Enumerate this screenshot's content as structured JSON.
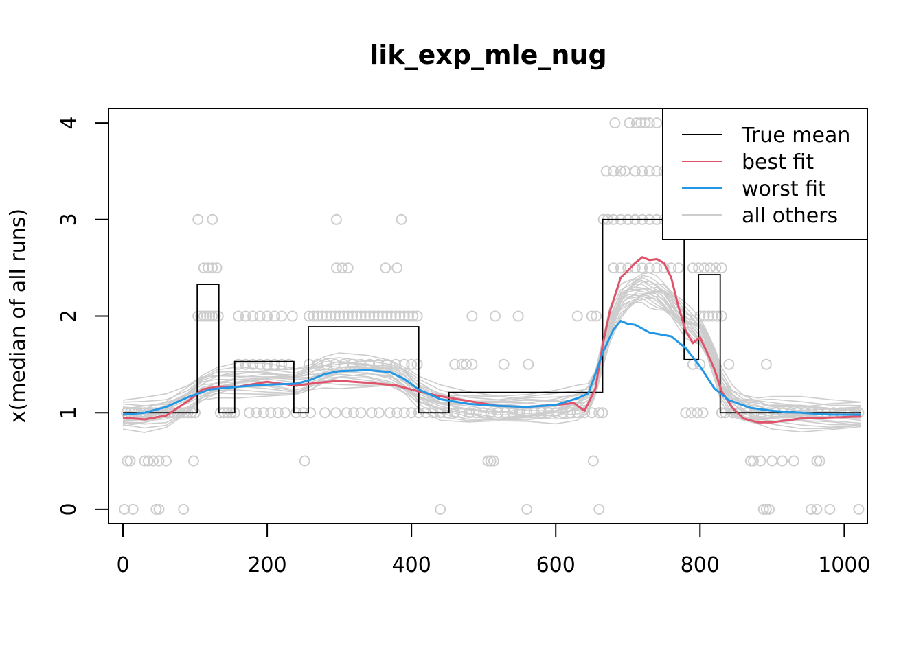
{
  "chart_data": {
    "type": "line",
    "title": "lik_exp_mle_nug",
    "xlabel": "",
    "ylabel": "x(median of all runs)",
    "xlim": [
      -20,
      1032
    ],
    "ylim": [
      -0.15,
      4.15
    ],
    "x_ticks": [
      0,
      200,
      400,
      600,
      800,
      1000
    ],
    "y_ticks": [
      0,
      1,
      2,
      3,
      4
    ],
    "x_tick_labels": [
      "0",
      "200",
      "400",
      "600",
      "800",
      "1000"
    ],
    "y_tick_labels": [
      "0",
      "1",
      "2",
      "3",
      "4"
    ],
    "grid": false,
    "legend_position": "top-right",
    "legend": [
      {
        "label": "True mean",
        "color": "#000000"
      },
      {
        "label": "best fit",
        "color": "#DF536B"
      },
      {
        "label": "worst fit",
        "color": "#2297E6"
      },
      {
        "label": "all others",
        "color": "#CDCDCD"
      }
    ],
    "true_mean": {
      "x": [
        0,
        103,
        103,
        133,
        133,
        155,
        155,
        237,
        237,
        257,
        257,
        410,
        410,
        452,
        452,
        665,
        665,
        778,
        778,
        798,
        798,
        828,
        828,
        1023
      ],
      "y": [
        1.0,
        1.0,
        2.33,
        2.33,
        1.0,
        1.0,
        1.53,
        1.53,
        1.0,
        1.0,
        1.89,
        1.89,
        1.0,
        1.0,
        1.21,
        1.21,
        3.0,
        3.0,
        1.55,
        1.55,
        2.43,
        2.43,
        1.0,
        1.0
      ]
    },
    "series": [
      {
        "name": "best fit",
        "color": "#DF536B",
        "x": [
          0,
          30,
          60,
          90,
          110,
          130,
          160,
          200,
          240,
          270,
          300,
          340,
          380,
          410,
          440,
          480,
          520,
          560,
          600,
          625,
          640,
          655,
          665,
          675,
          690,
          700,
          710,
          720,
          730,
          740,
          750,
          760,
          770,
          780,
          790,
          800,
          810,
          820,
          830,
          845,
          860,
          880,
          900,
          940,
          980,
          1023
        ],
        "y": [
          0.95,
          0.93,
          0.97,
          1.12,
          1.24,
          1.27,
          1.27,
          1.32,
          1.28,
          1.31,
          1.33,
          1.31,
          1.28,
          1.22,
          1.17,
          1.12,
          1.07,
          1.06,
          1.08,
          1.1,
          1.02,
          1.25,
          1.7,
          2.05,
          2.4,
          2.47,
          2.55,
          2.61,
          2.58,
          2.59,
          2.55,
          2.4,
          2.1,
          1.85,
          1.72,
          1.78,
          1.62,
          1.45,
          1.22,
          1.05,
          0.94,
          0.9,
          0.9,
          0.94,
          0.95,
          0.96
        ]
      },
      {
        "name": "worst fit",
        "color": "#2297E6",
        "x": [
          0,
          30,
          60,
          90,
          120,
          160,
          200,
          240,
          260,
          280,
          300,
          340,
          370,
          390,
          410,
          440,
          480,
          520,
          560,
          600,
          630,
          645,
          655,
          665,
          680,
          690,
          700,
          710,
          730,
          760,
          780,
          800,
          820,
          840,
          870,
          900,
          940,
          980,
          1023
        ],
        "y": [
          0.98,
          1.0,
          1.06,
          1.16,
          1.24,
          1.27,
          1.29,
          1.3,
          1.34,
          1.4,
          1.43,
          1.44,
          1.42,
          1.35,
          1.24,
          1.14,
          1.09,
          1.07,
          1.06,
          1.08,
          1.15,
          1.2,
          1.4,
          1.62,
          1.86,
          1.95,
          1.92,
          1.91,
          1.83,
          1.79,
          1.67,
          1.48,
          1.25,
          1.13,
          1.05,
          1.02,
          1.0,
          0.98,
          0.98
        ]
      }
    ],
    "others_base": {
      "x": [
        0,
        30,
        60,
        90,
        110,
        130,
        160,
        200,
        240,
        260,
        280,
        300,
        340,
        370,
        390,
        410,
        440,
        480,
        520,
        560,
        600,
        630,
        645,
        655,
        665,
        675,
        690,
        700,
        710,
        720,
        730,
        740,
        750,
        760,
        770,
        780,
        790,
        800,
        810,
        820,
        830,
        845,
        860,
        880,
        900,
        940,
        980,
        1023
      ],
      "y": [
        0.97,
        0.97,
        1.02,
        1.14,
        1.25,
        1.3,
        1.33,
        1.34,
        1.32,
        1.36,
        1.41,
        1.43,
        1.43,
        1.41,
        1.33,
        1.2,
        1.1,
        1.06,
        1.04,
        1.04,
        1.05,
        1.1,
        1.15,
        1.3,
        1.6,
        1.9,
        2.15,
        2.22,
        2.26,
        2.28,
        2.26,
        2.24,
        2.2,
        2.12,
        2.03,
        1.95,
        1.9,
        1.84,
        1.7,
        1.5,
        1.28,
        1.12,
        1.05,
        1.01,
        0.99,
        0.98,
        0.98,
        0.98
      ]
    },
    "others_offsets": [
      0.16,
      0.12,
      0.09,
      0.06,
      0.04,
      0.02,
      0.0,
      -0.02,
      -0.04,
      -0.06,
      -0.08,
      -0.1,
      -0.12,
      -0.15,
      0.1,
      -0.05,
      0.03,
      -0.09,
      0.07,
      -0.01
    ],
    "points": [
      [
        5,
        1
      ],
      [
        10,
        1
      ],
      [
        15,
        1
      ],
      [
        20,
        1
      ],
      [
        25,
        1
      ],
      [
        30,
        1
      ],
      [
        35,
        1
      ],
      [
        40,
        1
      ],
      [
        45,
        1
      ],
      [
        50,
        1
      ],
      [
        55,
        1
      ],
      [
        60,
        1
      ],
      [
        65,
        1
      ],
      [
        70,
        1
      ],
      [
        75,
        1
      ],
      [
        80,
        1
      ],
      [
        85,
        1
      ],
      [
        90,
        1
      ],
      [
        95,
        1
      ],
      [
        100,
        1
      ],
      [
        135,
        1
      ],
      [
        140,
        1
      ],
      [
        145,
        1
      ],
      [
        150,
        1
      ],
      [
        155,
        1
      ],
      [
        175,
        1
      ],
      [
        185,
        1
      ],
      [
        195,
        1
      ],
      [
        205,
        1
      ],
      [
        215,
        1
      ],
      [
        225,
        1
      ],
      [
        240,
        1
      ],
      [
        250,
        1
      ],
      [
        260,
        1
      ],
      [
        280,
        1
      ],
      [
        295,
        1
      ],
      [
        310,
        1
      ],
      [
        320,
        1
      ],
      [
        330,
        1
      ],
      [
        345,
        1
      ],
      [
        355,
        1
      ],
      [
        370,
        1
      ],
      [
        380,
        1
      ],
      [
        390,
        1
      ],
      [
        400,
        1
      ],
      [
        410,
        1
      ],
      [
        420,
        1
      ],
      [
        430,
        1
      ],
      [
        440,
        1
      ],
      [
        450,
        1
      ],
      [
        460,
        1
      ],
      [
        470,
        1
      ],
      [
        480,
        1
      ],
      [
        490,
        1
      ],
      [
        500,
        1
      ],
      [
        510,
        1
      ],
      [
        520,
        1
      ],
      [
        530,
        1
      ],
      [
        540,
        1
      ],
      [
        550,
        1
      ],
      [
        560,
        1
      ],
      [
        570,
        1
      ],
      [
        580,
        1
      ],
      [
        590,
        1
      ],
      [
        600,
        1
      ],
      [
        610,
        1
      ],
      [
        620,
        1
      ],
      [
        630,
        1
      ],
      [
        640,
        1
      ],
      [
        650,
        1
      ],
      [
        660,
        1
      ],
      [
        665,
        1
      ],
      [
        830,
        1
      ],
      [
        835,
        1
      ],
      [
        845,
        1
      ],
      [
        855,
        1
      ],
      [
        865,
        1
      ],
      [
        875,
        1
      ],
      [
        885,
        1
      ],
      [
        895,
        1
      ],
      [
        905,
        1
      ],
      [
        915,
        1
      ],
      [
        925,
        1
      ],
      [
        935,
        1
      ],
      [
        945,
        1
      ],
      [
        955,
        1
      ],
      [
        965,
        1
      ],
      [
        975,
        1
      ],
      [
        985,
        1
      ],
      [
        995,
        1
      ],
      [
        1005,
        1
      ],
      [
        1015,
        1
      ],
      [
        1020,
        1
      ],
      [
        780,
        1
      ],
      [
        788,
        1
      ],
      [
        796,
        1
      ],
      [
        804,
        1
      ],
      [
        104,
        2
      ],
      [
        108,
        2
      ],
      [
        112,
        2
      ],
      [
        116,
        2
      ],
      [
        120,
        2
      ],
      [
        124,
        2
      ],
      [
        128,
        2
      ],
      [
        132,
        2
      ],
      [
        160,
        2
      ],
      [
        170,
        2
      ],
      [
        180,
        2
      ],
      [
        190,
        2
      ],
      [
        200,
        2
      ],
      [
        210,
        2
      ],
      [
        220,
        2
      ],
      [
        235,
        2
      ],
      [
        258,
        2
      ],
      [
        264,
        2
      ],
      [
        270,
        2
      ],
      [
        276,
        2
      ],
      [
        282,
        2
      ],
      [
        288,
        2
      ],
      [
        294,
        2
      ],
      [
        300,
        2
      ],
      [
        306,
        2
      ],
      [
        312,
        2
      ],
      [
        318,
        2
      ],
      [
        324,
        2
      ],
      [
        330,
        2
      ],
      [
        336,
        2
      ],
      [
        342,
        2
      ],
      [
        348,
        2
      ],
      [
        354,
        2
      ],
      [
        360,
        2
      ],
      [
        366,
        2
      ],
      [
        372,
        2
      ],
      [
        378,
        2
      ],
      [
        384,
        2
      ],
      [
        390,
        2
      ],
      [
        396,
        2
      ],
      [
        402,
        2
      ],
      [
        408,
        2
      ],
      [
        484,
        2
      ],
      [
        516,
        2
      ],
      [
        548,
        2
      ],
      [
        630,
        2
      ],
      [
        650,
        2
      ],
      [
        656,
        2
      ],
      [
        800,
        2
      ],
      [
        806,
        2
      ],
      [
        812,
        2
      ],
      [
        818,
        2
      ],
      [
        824,
        2
      ],
      [
        830,
        2
      ],
      [
        160,
        1.5
      ],
      [
        170,
        1.5
      ],
      [
        180,
        1.5
      ],
      [
        190,
        1.5
      ],
      [
        200,
        1.5
      ],
      [
        210,
        1.5
      ],
      [
        220,
        1.5
      ],
      [
        230,
        1.5
      ],
      [
        258,
        1.5
      ],
      [
        270,
        1.5
      ],
      [
        282,
        1.5
      ],
      [
        294,
        1.5
      ],
      [
        306,
        1.5
      ],
      [
        318,
        1.5
      ],
      [
        330,
        1.5
      ],
      [
        342,
        1.5
      ],
      [
        354,
        1.5
      ],
      [
        366,
        1.5
      ],
      [
        378,
        1.5
      ],
      [
        390,
        1.5
      ],
      [
        400,
        1.5
      ],
      [
        408,
        1.5
      ],
      [
        460,
        1.5
      ],
      [
        470,
        1.5
      ],
      [
        476,
        1.5
      ],
      [
        484,
        1.5
      ],
      [
        528,
        1.5
      ],
      [
        562,
        1.5
      ],
      [
        790,
        1.5
      ],
      [
        800,
        1.5
      ],
      [
        820,
        1.5
      ],
      [
        840,
        1.5
      ],
      [
        892,
        1.5
      ],
      [
        112,
        2.5
      ],
      [
        118,
        2.5
      ],
      [
        124,
        2.5
      ],
      [
        130,
        2.5
      ],
      [
        296,
        2.5
      ],
      [
        304,
        2.5
      ],
      [
        312,
        2.5
      ],
      [
        364,
        2.5
      ],
      [
        380,
        2.5
      ],
      [
        680,
        2.5
      ],
      [
        690,
        2.5
      ],
      [
        700,
        2.5
      ],
      [
        710,
        2.5
      ],
      [
        720,
        2.5
      ],
      [
        730,
        2.5
      ],
      [
        740,
        2.5
      ],
      [
        750,
        2.5
      ],
      [
        760,
        2.5
      ],
      [
        770,
        2.5
      ],
      [
        790,
        2.5
      ],
      [
        798,
        2.5
      ],
      [
        806,
        2.5
      ],
      [
        814,
        2.5
      ],
      [
        822,
        2.5
      ],
      [
        830,
        2.5
      ],
      [
        104,
        3
      ],
      [
        124,
        3
      ],
      [
        296,
        3
      ],
      [
        386,
        3
      ],
      [
        666,
        3
      ],
      [
        672,
        3
      ],
      [
        680,
        3
      ],
      [
        690,
        3
      ],
      [
        700,
        3
      ],
      [
        710,
        3
      ],
      [
        720,
        3
      ],
      [
        730,
        3
      ],
      [
        740,
        3
      ],
      [
        750,
        3
      ],
      [
        760,
        3
      ],
      [
        770,
        3
      ],
      [
        670,
        3.5
      ],
      [
        680,
        3.5
      ],
      [
        690,
        3.5
      ],
      [
        696,
        3.5
      ],
      [
        710,
        3.5
      ],
      [
        720,
        3.5
      ],
      [
        730,
        3.5
      ],
      [
        740,
        3.5
      ],
      [
        750,
        3.5
      ],
      [
        682,
        4
      ],
      [
        702,
        4
      ],
      [
        712,
        4
      ],
      [
        718,
        4
      ],
      [
        724,
        4
      ],
      [
        730,
        4
      ],
      [
        740,
        4
      ],
      [
        760,
        4
      ],
      [
        6,
        0.5
      ],
      [
        10,
        0.5
      ],
      [
        30,
        0.5
      ],
      [
        35,
        0.5
      ],
      [
        42,
        0.5
      ],
      [
        50,
        0.5
      ],
      [
        60,
        0.5
      ],
      [
        98,
        0.5
      ],
      [
        252,
        0.5
      ],
      [
        506,
        0.5
      ],
      [
        510,
        0.5
      ],
      [
        514,
        0.5
      ],
      [
        652,
        0.5
      ],
      [
        870,
        0.5
      ],
      [
        874,
        0.5
      ],
      [
        884,
        0.5
      ],
      [
        900,
        0.5
      ],
      [
        914,
        0.5
      ],
      [
        930,
        0.5
      ],
      [
        962,
        0.5
      ],
      [
        966,
        0.5
      ],
      [
        2,
        0
      ],
      [
        14,
        0
      ],
      [
        46,
        0
      ],
      [
        50,
        0
      ],
      [
        84,
        0
      ],
      [
        440,
        0
      ],
      [
        560,
        0
      ],
      [
        660,
        0
      ],
      [
        888,
        0
      ],
      [
        892,
        0
      ],
      [
        896,
        0
      ],
      [
        954,
        0
      ],
      [
        962,
        0
      ],
      [
        980,
        0
      ],
      [
        1020,
        0
      ]
    ]
  }
}
